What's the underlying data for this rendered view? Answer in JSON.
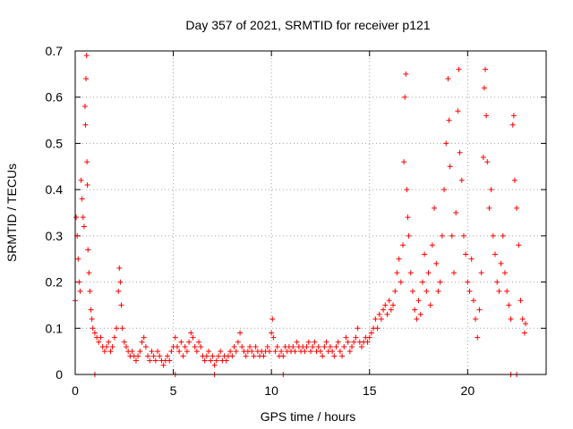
{
  "chart_data": {
    "type": "scatter",
    "title": "Day 357 of 2021, SRMTID for receiver p121",
    "xlabel": "GPS time / hours",
    "ylabel": "SRMTID / TECUs",
    "xlim": [
      0,
      24
    ],
    "ylim": [
      0,
      0.7
    ],
    "xticks": [
      0,
      5,
      10,
      15,
      20
    ],
    "yticks": [
      0,
      0.1,
      0.2,
      0.3,
      0.4,
      0.5,
      0.6,
      0.7
    ],
    "xtick_labels": [
      "0",
      "5",
      "10",
      "15",
      "20"
    ],
    "ytick_labels": [
      "0",
      "0.1",
      "0.2",
      "0.3",
      "0.4",
      "0.5",
      "0.6",
      "0.7"
    ],
    "grid": true,
    "marker": "+",
    "color": "#ff0000",
    "series": [
      {
        "name": "p121",
        "points": [
          [
            0.0,
            0.16
          ],
          [
            0.05,
            0.34
          ],
          [
            0.1,
            0.3
          ],
          [
            0.15,
            0.25
          ],
          [
            0.2,
            0.2
          ],
          [
            0.25,
            0.18
          ],
          [
            0.3,
            0.42
          ],
          [
            0.35,
            0.38
          ],
          [
            0.4,
            0.34
          ],
          [
            0.45,
            0.32
          ],
          [
            0.5,
            0.58
          ],
          [
            0.52,
            0.54
          ],
          [
            0.55,
            0.64
          ],
          [
            0.58,
            0.69
          ],
          [
            0.6,
            0.46
          ],
          [
            0.62,
            0.41
          ],
          [
            0.65,
            0.27
          ],
          [
            0.7,
            0.22
          ],
          [
            0.75,
            0.18
          ],
          [
            0.8,
            0.14
          ],
          [
            0.85,
            0.12
          ],
          [
            0.9,
            0.1
          ],
          [
            1.0,
            0.09
          ],
          [
            1.1,
            0.08
          ],
          [
            1.2,
            0.07
          ],
          [
            1.3,
            0.08
          ],
          [
            1.4,
            0.06
          ],
          [
            1.5,
            0.05
          ],
          [
            1.6,
            0.06
          ],
          [
            1.7,
            0.07
          ],
          [
            1.8,
            0.05
          ],
          [
            1.9,
            0.06
          ],
          [
            2.0,
            0.08
          ],
          [
            2.1,
            0.1
          ],
          [
            2.2,
            0.18
          ],
          [
            2.25,
            0.23
          ],
          [
            2.3,
            0.2
          ],
          [
            2.35,
            0.15
          ],
          [
            2.4,
            0.1
          ],
          [
            2.5,
            0.07
          ],
          [
            2.6,
            0.06
          ],
          [
            2.7,
            0.05
          ],
          [
            2.8,
            0.04
          ],
          [
            2.9,
            0.05
          ],
          [
            3.0,
            0.04
          ],
          [
            3.1,
            0.03
          ],
          [
            3.2,
            0.04
          ],
          [
            3.3,
            0.05
          ],
          [
            3.4,
            0.07
          ],
          [
            3.5,
            0.08
          ],
          [
            3.6,
            0.06
          ],
          [
            3.7,
            0.04
          ],
          [
            3.8,
            0.03
          ],
          [
            3.9,
            0.05
          ],
          [
            4.0,
            0.04
          ],
          [
            4.1,
            0.03
          ],
          [
            4.2,
            0.05
          ],
          [
            4.3,
            0.04
          ],
          [
            4.4,
            0.03
          ],
          [
            4.5,
            0.02
          ],
          [
            4.6,
            0.03
          ],
          [
            4.7,
            0.04
          ],
          [
            4.8,
            0.03
          ],
          [
            4.9,
            0.05
          ],
          [
            5.0,
            0.06
          ],
          [
            5.1,
            0.08
          ],
          [
            5.2,
            0.06
          ],
          [
            5.3,
            0.05
          ],
          [
            5.4,
            0.07
          ],
          [
            5.5,
            0.04
          ],
          [
            5.6,
            0.06
          ],
          [
            5.7,
            0.05
          ],
          [
            5.8,
            0.07
          ],
          [
            5.9,
            0.09
          ],
          [
            6.0,
            0.08
          ],
          [
            6.1,
            0.06
          ],
          [
            6.2,
            0.05
          ],
          [
            6.3,
            0.07
          ],
          [
            6.4,
            0.06
          ],
          [
            6.5,
            0.04
          ],
          [
            6.6,
            0.03
          ],
          [
            6.7,
            0.04
          ],
          [
            6.8,
            0.05
          ],
          [
            6.9,
            0.03
          ],
          [
            7.0,
            0.04
          ],
          [
            7.1,
            0.02
          ],
          [
            7.2,
            0.03
          ],
          [
            7.3,
            0.04
          ],
          [
            7.4,
            0.05
          ],
          [
            7.5,
            0.03
          ],
          [
            7.6,
            0.04
          ],
          [
            7.7,
            0.03
          ],
          [
            7.8,
            0.04
          ],
          [
            7.9,
            0.05
          ],
          [
            8.0,
            0.04
          ],
          [
            8.1,
            0.06
          ],
          [
            8.2,
            0.05
          ],
          [
            8.3,
            0.07
          ],
          [
            8.4,
            0.09
          ],
          [
            8.5,
            0.06
          ],
          [
            8.6,
            0.05
          ],
          [
            8.7,
            0.04
          ],
          [
            8.8,
            0.05
          ],
          [
            8.9,
            0.06
          ],
          [
            9.0,
            0.05
          ],
          [
            9.1,
            0.04
          ],
          [
            9.2,
            0.06
          ],
          [
            9.3,
            0.05
          ],
          [
            9.4,
            0.04
          ],
          [
            9.5,
            0.05
          ],
          [
            9.6,
            0.04
          ],
          [
            9.7,
            0.05
          ],
          [
            9.8,
            0.06
          ],
          [
            9.9,
            0.05
          ],
          [
            10.0,
            0.09
          ],
          [
            10.05,
            0.12
          ],
          [
            10.1,
            0.08
          ],
          [
            10.2,
            0.05
          ],
          [
            10.3,
            0.06
          ],
          [
            10.4,
            0.04
          ],
          [
            10.5,
            0.05
          ],
          [
            10.6,
            0.04
          ],
          [
            10.7,
            0.06
          ],
          [
            10.8,
            0.05
          ],
          [
            10.9,
            0.06
          ],
          [
            11.0,
            0.05
          ],
          [
            11.1,
            0.06
          ],
          [
            11.2,
            0.05
          ],
          [
            11.3,
            0.07
          ],
          [
            11.4,
            0.06
          ],
          [
            11.5,
            0.05
          ],
          [
            11.6,
            0.06
          ],
          [
            11.7,
            0.05
          ],
          [
            11.8,
            0.06
          ],
          [
            11.9,
            0.07
          ],
          [
            12.0,
            0.05
          ],
          [
            12.1,
            0.06
          ],
          [
            12.2,
            0.07
          ],
          [
            12.3,
            0.05
          ],
          [
            12.4,
            0.06
          ],
          [
            12.5,
            0.05
          ],
          [
            12.6,
            0.04
          ],
          [
            12.7,
            0.06
          ],
          [
            12.8,
            0.07
          ],
          [
            12.9,
            0.05
          ],
          [
            13.0,
            0.06
          ],
          [
            13.1,
            0.05
          ],
          [
            13.2,
            0.04
          ],
          [
            13.3,
            0.06
          ],
          [
            13.4,
            0.07
          ],
          [
            13.5,
            0.05
          ],
          [
            13.6,
            0.04
          ],
          [
            13.7,
            0.06
          ],
          [
            13.8,
            0.08
          ],
          [
            13.9,
            0.07
          ],
          [
            14.0,
            0.05
          ],
          [
            14.1,
            0.06
          ],
          [
            14.2,
            0.07
          ],
          [
            14.3,
            0.08
          ],
          [
            14.4,
            0.1
          ],
          [
            14.5,
            0.07
          ],
          [
            14.6,
            0.06
          ],
          [
            14.7,
            0.07
          ],
          [
            14.8,
            0.08
          ],
          [
            14.9,
            0.07
          ],
          [
            15.0,
            0.08
          ],
          [
            15.1,
            0.09
          ],
          [
            15.2,
            0.1
          ],
          [
            15.3,
            0.12
          ],
          [
            15.4,
            0.1
          ],
          [
            15.5,
            0.13
          ],
          [
            15.6,
            0.12
          ],
          [
            15.7,
            0.14
          ],
          [
            15.8,
            0.15
          ],
          [
            15.9,
            0.13
          ],
          [
            16.0,
            0.16
          ],
          [
            16.1,
            0.14
          ],
          [
            16.2,
            0.15
          ],
          [
            16.3,
            0.18
          ],
          [
            16.4,
            0.22
          ],
          [
            16.5,
            0.25
          ],
          [
            16.6,
            0.2
          ],
          [
            16.7,
            0.28
          ],
          [
            16.75,
            0.46
          ],
          [
            16.8,
            0.6
          ],
          [
            16.85,
            0.65
          ],
          [
            16.9,
            0.4
          ],
          [
            16.95,
            0.34
          ],
          [
            17.0,
            0.3
          ],
          [
            17.1,
            0.22
          ],
          [
            17.2,
            0.18
          ],
          [
            17.3,
            0.14
          ],
          [
            17.4,
            0.12
          ],
          [
            17.5,
            0.16
          ],
          [
            17.6,
            0.13
          ],
          [
            17.7,
            0.2
          ],
          [
            17.8,
            0.26
          ],
          [
            17.9,
            0.18
          ],
          [
            18.0,
            0.22
          ],
          [
            18.1,
            0.15
          ],
          [
            18.2,
            0.28
          ],
          [
            18.3,
            0.36
          ],
          [
            18.4,
            0.24
          ],
          [
            18.5,
            0.18
          ],
          [
            18.6,
            0.2
          ],
          [
            18.7,
            0.3
          ],
          [
            18.8,
            0.4
          ],
          [
            18.9,
            0.5
          ],
          [
            19.0,
            0.64
          ],
          [
            19.05,
            0.55
          ],
          [
            19.1,
            0.45
          ],
          [
            19.2,
            0.3
          ],
          [
            19.3,
            0.22
          ],
          [
            19.4,
            0.35
          ],
          [
            19.5,
            0.57
          ],
          [
            19.55,
            0.66
          ],
          [
            19.6,
            0.48
          ],
          [
            19.7,
            0.42
          ],
          [
            19.8,
            0.3
          ],
          [
            19.9,
            0.26
          ],
          [
            20.0,
            0.2
          ],
          [
            20.1,
            0.18
          ],
          [
            20.2,
            0.25
          ],
          [
            20.3,
            0.16
          ],
          [
            20.4,
            0.12
          ],
          [
            20.5,
            0.08
          ],
          [
            20.6,
            0.14
          ],
          [
            20.7,
            0.22
          ],
          [
            20.8,
            0.47
          ],
          [
            20.85,
            0.62
          ],
          [
            20.9,
            0.66
          ],
          [
            20.95,
            0.56
          ],
          [
            21.0,
            0.46
          ],
          [
            21.1,
            0.36
          ],
          [
            21.2,
            0.4
          ],
          [
            21.3,
            0.3
          ],
          [
            21.4,
            0.26
          ],
          [
            21.5,
            0.2
          ],
          [
            21.6,
            0.18
          ],
          [
            21.7,
            0.24
          ],
          [
            21.8,
            0.3
          ],
          [
            21.9,
            0.22
          ],
          [
            22.0,
            0.18
          ],
          [
            22.1,
            0.15
          ],
          [
            22.2,
            0.12
          ],
          [
            22.3,
            0.54
          ],
          [
            22.35,
            0.56
          ],
          [
            22.4,
            0.42
          ],
          [
            22.5,
            0.36
          ],
          [
            22.6,
            0.28
          ],
          [
            22.7,
            0.16
          ],
          [
            22.8,
            0.12
          ],
          [
            22.9,
            0.09
          ],
          [
            22.95,
            0.11
          ],
          [
            22.2,
            0.0
          ],
          [
            22.5,
            0.0
          ],
          [
            7.1,
            0.0
          ],
          [
            5.1,
            0.0
          ],
          [
            10.6,
            0.0
          ],
          [
            1.0,
            0.0
          ]
        ]
      }
    ]
  }
}
